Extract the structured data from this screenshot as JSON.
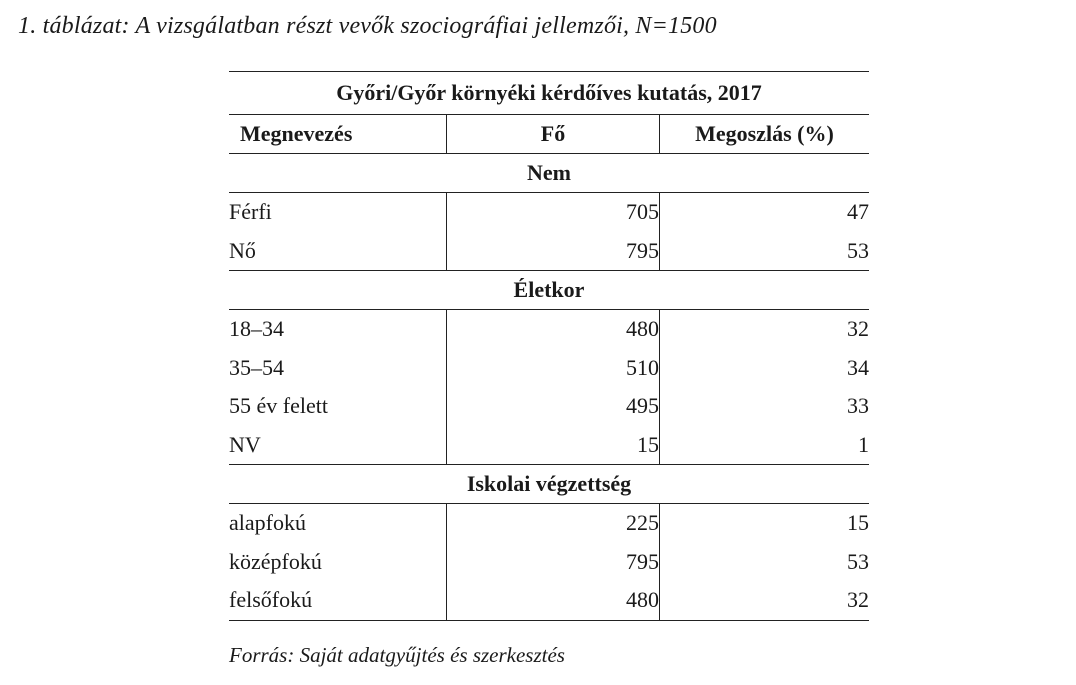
{
  "caption": "1. táblázat: A vizsgálatban részt vevők szociográfiai jellemzői, N=1500",
  "table": {
    "title": "Győri/Győr környéki kérdőíves kutatás, 2017",
    "columns": [
      "Megnevezés",
      "Fő",
      "Megoszlás (%)"
    ],
    "sections": [
      {
        "label": "Nem",
        "rows": [
          {
            "name": "Férfi",
            "count": "705",
            "share": "47"
          },
          {
            "name": "Nő",
            "count": "795",
            "share": "53"
          }
        ]
      },
      {
        "label": "Életkor",
        "rows": [
          {
            "name": "18–34",
            "count": "480",
            "share": "32"
          },
          {
            "name": "35–54",
            "count": "510",
            "share": "34"
          },
          {
            "name": "55 év felett",
            "count": "495",
            "share": "33"
          },
          {
            "name": "NV",
            "count": "15",
            "share": "1"
          }
        ]
      },
      {
        "label": "Iskolai végzettség",
        "rows": [
          {
            "name": "alapfokú",
            "count": "225",
            "share": "15"
          },
          {
            "name": "középfokú",
            "count": "795",
            "share": "53"
          },
          {
            "name": "felsőfokú",
            "count": "480",
            "share": "32"
          }
        ]
      }
    ]
  },
  "source": "Forrás: Saját adatgyűjtés és szerkesztés"
}
